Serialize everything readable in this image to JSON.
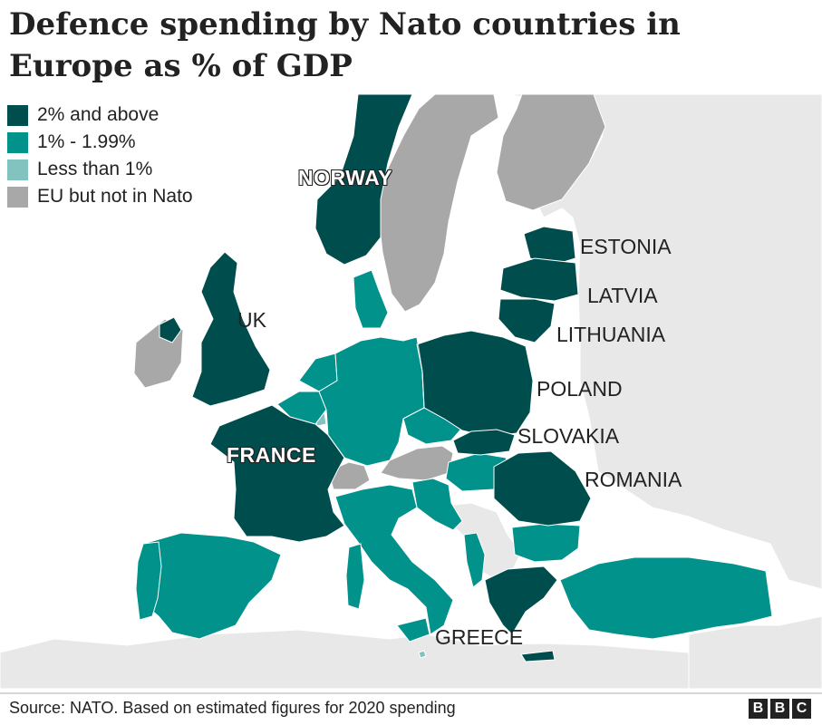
{
  "title": "Defence spending by Nato countries in Europe as % of GDP",
  "legend": [
    {
      "label": "2% and above",
      "color": "#004d4d"
    },
    {
      "label": "1% - 1.99%",
      "color": "#00928b"
    },
    {
      "label": "Less than 1%",
      "color": "#82c3c0"
    },
    {
      "label": "EU but not in Nato",
      "color": "#a8a8a8"
    }
  ],
  "colors": {
    "sea": "#ffffff",
    "land": "#e8e8e8"
  },
  "country_labels": {
    "norway": "NORWAY",
    "estonia": "ESTONIA",
    "latvia": "LATVIA",
    "lithuania": "LITHUANIA",
    "uk": "UK",
    "poland": "POLAND",
    "slovakia": "SLOVAKIA",
    "france": "FRANCE",
    "romania": "ROMANIA",
    "greece": "GREECE"
  },
  "footer": {
    "source": "Source: NATO. Based on estimated figures for 2020 spending",
    "brand": [
      "B",
      "B",
      "C"
    ]
  }
}
